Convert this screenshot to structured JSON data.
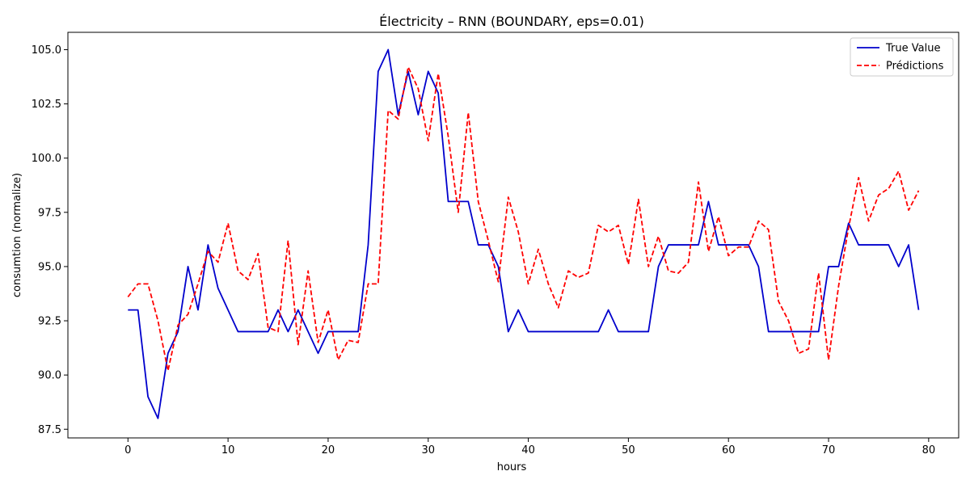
{
  "chart_data": {
    "type": "line",
    "title": "Électricity – RNN (BOUNDARY, eps=0.01)",
    "xlabel": "hours",
    "ylabel": "consumtion (normalize)",
    "xlim": [
      -6,
      83
    ],
    "ylim": [
      87.1,
      105.8
    ],
    "xticks": [
      0,
      10,
      20,
      30,
      40,
      50,
      60,
      70,
      80
    ],
    "yticks": [
      87.5,
      90.0,
      92.5,
      95.0,
      97.5,
      100.0,
      102.5,
      105.0
    ],
    "xtick_labels": [
      "0",
      "10",
      "20",
      "30",
      "40",
      "50",
      "60",
      "70",
      "80"
    ],
    "ytick_labels": [
      "87.5",
      "90.0",
      "92.5",
      "95.0",
      "97.5",
      "100.0",
      "102.5",
      "105.0"
    ],
    "grid": false,
    "legend_position": "top-right",
    "series": [
      {
        "name": "True Value",
        "color": "#0000cc",
        "style": "solid",
        "values": [
          93,
          93,
          89,
          88,
          91,
          92,
          95,
          93,
          96,
          94,
          93,
          92,
          92,
          92,
          92,
          93,
          92,
          93,
          92,
          91,
          92,
          92,
          92,
          92,
          96,
          104,
          105,
          102,
          104,
          102,
          104,
          103,
          98,
          98,
          98,
          96,
          96,
          95,
          92,
          93,
          92,
          92,
          92,
          92,
          92,
          92,
          92,
          92,
          93,
          92,
          92,
          92,
          92,
          95,
          96,
          96,
          96,
          96,
          98,
          96,
          96,
          96,
          96,
          95,
          92,
          92,
          92,
          92,
          92,
          92,
          95,
          95,
          97,
          96,
          96,
          96,
          96,
          95,
          96,
          93
        ]
      },
      {
        "name": "Prédictions",
        "color": "#ff0000",
        "style": "dashed",
        "values": [
          93.6,
          94.2,
          94.2,
          92.5,
          90.2,
          92.3,
          92.8,
          94.2,
          95.7,
          95.2,
          97.0,
          94.8,
          94.4,
          95.6,
          92.2,
          92.0,
          96.2,
          91.4,
          94.8,
          91.5,
          93.0,
          90.7,
          91.6,
          91.5,
          94.2,
          94.2,
          102.2,
          101.8,
          104.2,
          103.2,
          100.8,
          103.9,
          101.0,
          97.5,
          102.1,
          98.0,
          96.2,
          94.3,
          98.2,
          96.6,
          94.2,
          95.8,
          94.2,
          93.1,
          94.8,
          94.5,
          94.7,
          96.9,
          96.6,
          96.9,
          95.1,
          98.1,
          95.0,
          96.4,
          94.8,
          94.7,
          95.2,
          98.9,
          95.7,
          97.3,
          95.5,
          95.9,
          95.9,
          97.1,
          96.7,
          93.4,
          92.5,
          91.0,
          91.2,
          94.7,
          90.7,
          94.1,
          96.8,
          99.1,
          97.1,
          98.3,
          98.6,
          99.4,
          97.6,
          98.5
        ]
      }
    ]
  }
}
